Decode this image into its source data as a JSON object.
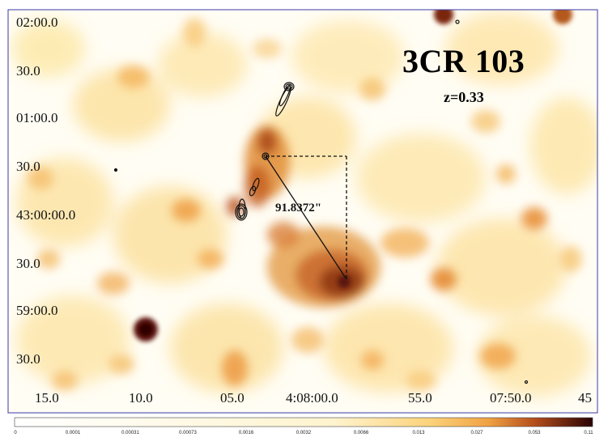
{
  "image": {
    "title": "3CR 103",
    "redshift": "z=0.33",
    "measurement": "91.8372\"",
    "y_labels": [
      "02:00.0",
      "30.0",
      "01:00.0",
      "30.0",
      "43:00:00.0",
      "30.0",
      "59:00.0",
      "30.0"
    ],
    "x_labels": [
      "15.0",
      "10.0",
      "05.0",
      "4:08:00.0",
      "55.0",
      "07:50.0",
      "45"
    ],
    "colorbar": {
      "ticks": [
        "0",
        "0.0001",
        "0.00031",
        "0.00073",
        "0.0016",
        "0.0032",
        "0.0066",
        "0.013",
        "0.027",
        "0.053",
        "0.11"
      ],
      "colors": [
        "#ffffff",
        "#fff6cf",
        "#f9c160",
        "#e08a2a",
        "#a8421b",
        "#3b0506"
      ]
    }
  }
}
